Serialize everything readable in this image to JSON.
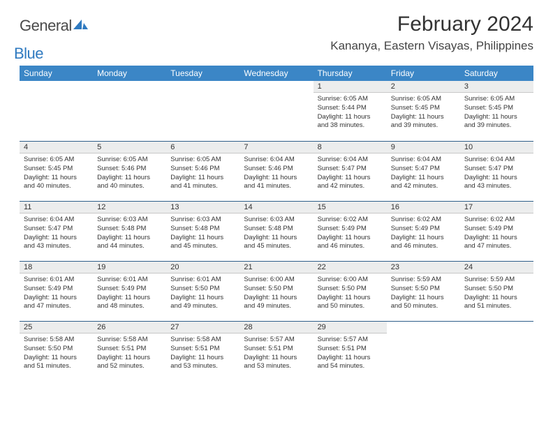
{
  "brand": {
    "text1": "General",
    "text2": "Blue",
    "accent": "#2f7ac0"
  },
  "title": "February 2024",
  "location": "Kananya, Eastern Visayas, Philippines",
  "header_bg": "#3b86c6",
  "daynum_bg": "#eceded",
  "border_color": "#2f5f8a",
  "weekdays": [
    "Sunday",
    "Monday",
    "Tuesday",
    "Wednesday",
    "Thursday",
    "Friday",
    "Saturday"
  ],
  "weeks": [
    [
      null,
      null,
      null,
      null,
      {
        "n": "1",
        "sr": "Sunrise: 6:05 AM",
        "ss": "Sunset: 5:44 PM",
        "dl": "Daylight: 11 hours and 38 minutes."
      },
      {
        "n": "2",
        "sr": "Sunrise: 6:05 AM",
        "ss": "Sunset: 5:45 PM",
        "dl": "Daylight: 11 hours and 39 minutes."
      },
      {
        "n": "3",
        "sr": "Sunrise: 6:05 AM",
        "ss": "Sunset: 5:45 PM",
        "dl": "Daylight: 11 hours and 39 minutes."
      }
    ],
    [
      {
        "n": "4",
        "sr": "Sunrise: 6:05 AM",
        "ss": "Sunset: 5:45 PM",
        "dl": "Daylight: 11 hours and 40 minutes."
      },
      {
        "n": "5",
        "sr": "Sunrise: 6:05 AM",
        "ss": "Sunset: 5:46 PM",
        "dl": "Daylight: 11 hours and 40 minutes."
      },
      {
        "n": "6",
        "sr": "Sunrise: 6:05 AM",
        "ss": "Sunset: 5:46 PM",
        "dl": "Daylight: 11 hours and 41 minutes."
      },
      {
        "n": "7",
        "sr": "Sunrise: 6:04 AM",
        "ss": "Sunset: 5:46 PM",
        "dl": "Daylight: 11 hours and 41 minutes."
      },
      {
        "n": "8",
        "sr": "Sunrise: 6:04 AM",
        "ss": "Sunset: 5:47 PM",
        "dl": "Daylight: 11 hours and 42 minutes."
      },
      {
        "n": "9",
        "sr": "Sunrise: 6:04 AM",
        "ss": "Sunset: 5:47 PM",
        "dl": "Daylight: 11 hours and 42 minutes."
      },
      {
        "n": "10",
        "sr": "Sunrise: 6:04 AM",
        "ss": "Sunset: 5:47 PM",
        "dl": "Daylight: 11 hours and 43 minutes."
      }
    ],
    [
      {
        "n": "11",
        "sr": "Sunrise: 6:04 AM",
        "ss": "Sunset: 5:47 PM",
        "dl": "Daylight: 11 hours and 43 minutes."
      },
      {
        "n": "12",
        "sr": "Sunrise: 6:03 AM",
        "ss": "Sunset: 5:48 PM",
        "dl": "Daylight: 11 hours and 44 minutes."
      },
      {
        "n": "13",
        "sr": "Sunrise: 6:03 AM",
        "ss": "Sunset: 5:48 PM",
        "dl": "Daylight: 11 hours and 45 minutes."
      },
      {
        "n": "14",
        "sr": "Sunrise: 6:03 AM",
        "ss": "Sunset: 5:48 PM",
        "dl": "Daylight: 11 hours and 45 minutes."
      },
      {
        "n": "15",
        "sr": "Sunrise: 6:02 AM",
        "ss": "Sunset: 5:49 PM",
        "dl": "Daylight: 11 hours and 46 minutes."
      },
      {
        "n": "16",
        "sr": "Sunrise: 6:02 AM",
        "ss": "Sunset: 5:49 PM",
        "dl": "Daylight: 11 hours and 46 minutes."
      },
      {
        "n": "17",
        "sr": "Sunrise: 6:02 AM",
        "ss": "Sunset: 5:49 PM",
        "dl": "Daylight: 11 hours and 47 minutes."
      }
    ],
    [
      {
        "n": "18",
        "sr": "Sunrise: 6:01 AM",
        "ss": "Sunset: 5:49 PM",
        "dl": "Daylight: 11 hours and 47 minutes."
      },
      {
        "n": "19",
        "sr": "Sunrise: 6:01 AM",
        "ss": "Sunset: 5:49 PM",
        "dl": "Daylight: 11 hours and 48 minutes."
      },
      {
        "n": "20",
        "sr": "Sunrise: 6:01 AM",
        "ss": "Sunset: 5:50 PM",
        "dl": "Daylight: 11 hours and 49 minutes."
      },
      {
        "n": "21",
        "sr": "Sunrise: 6:00 AM",
        "ss": "Sunset: 5:50 PM",
        "dl": "Daylight: 11 hours and 49 minutes."
      },
      {
        "n": "22",
        "sr": "Sunrise: 6:00 AM",
        "ss": "Sunset: 5:50 PM",
        "dl": "Daylight: 11 hours and 50 minutes."
      },
      {
        "n": "23",
        "sr": "Sunrise: 5:59 AM",
        "ss": "Sunset: 5:50 PM",
        "dl": "Daylight: 11 hours and 50 minutes."
      },
      {
        "n": "24",
        "sr": "Sunrise: 5:59 AM",
        "ss": "Sunset: 5:50 PM",
        "dl": "Daylight: 11 hours and 51 minutes."
      }
    ],
    [
      {
        "n": "25",
        "sr": "Sunrise: 5:58 AM",
        "ss": "Sunset: 5:50 PM",
        "dl": "Daylight: 11 hours and 51 minutes."
      },
      {
        "n": "26",
        "sr": "Sunrise: 5:58 AM",
        "ss": "Sunset: 5:51 PM",
        "dl": "Daylight: 11 hours and 52 minutes."
      },
      {
        "n": "27",
        "sr": "Sunrise: 5:58 AM",
        "ss": "Sunset: 5:51 PM",
        "dl": "Daylight: 11 hours and 53 minutes."
      },
      {
        "n": "28",
        "sr": "Sunrise: 5:57 AM",
        "ss": "Sunset: 5:51 PM",
        "dl": "Daylight: 11 hours and 53 minutes."
      },
      {
        "n": "29",
        "sr": "Sunrise: 5:57 AM",
        "ss": "Sunset: 5:51 PM",
        "dl": "Daylight: 11 hours and 54 minutes."
      },
      null,
      null
    ]
  ]
}
